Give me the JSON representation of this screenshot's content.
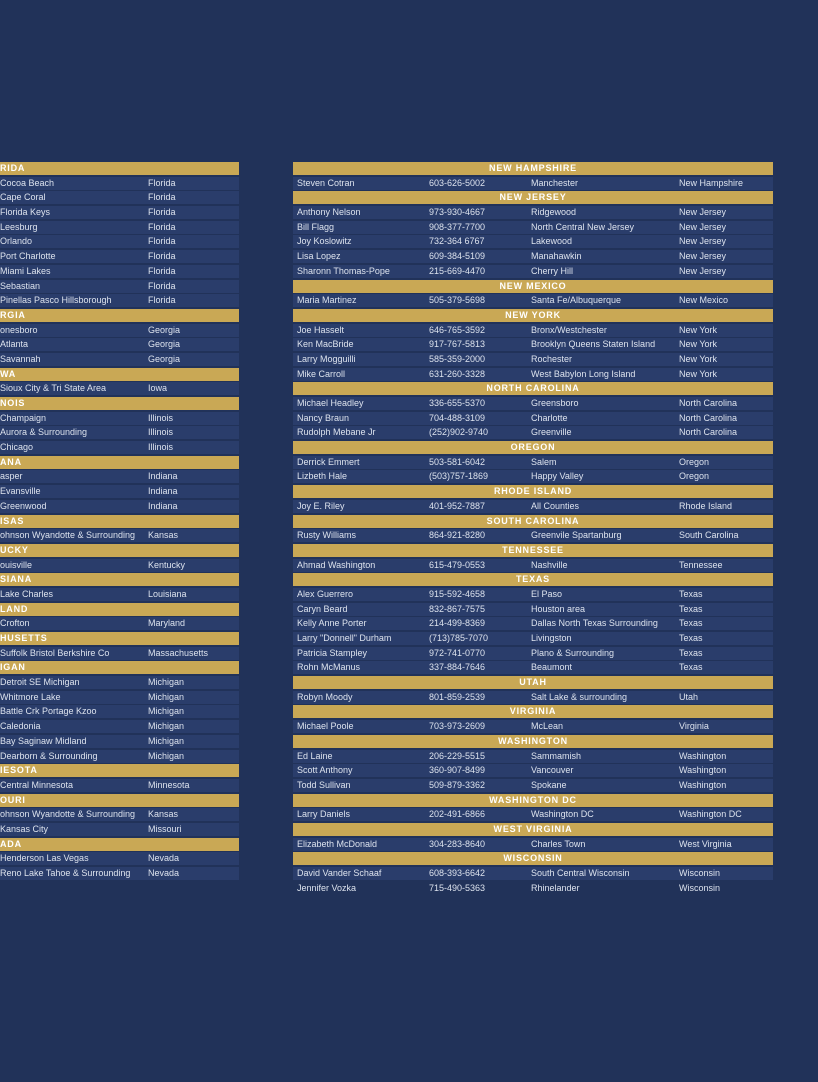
{
  "left_sections": [
    {
      "header": "RIDA",
      "rows": [
        [
          "Cocoa Beach",
          "Florida"
        ],
        [
          "Cape Coral",
          "Florida"
        ],
        [
          "Florida Keys",
          "Florida"
        ],
        [
          "Leesburg",
          "Florida"
        ],
        [
          "Orlando",
          "Florida"
        ],
        [
          "Port Charlotte",
          "Florida"
        ],
        [
          "Miami Lakes",
          "Florida"
        ],
        [
          "Sebastian",
          "Florida"
        ],
        [
          "Pinellas Pasco Hillsborough",
          "Florida"
        ]
      ]
    },
    {
      "header": "RGIA",
      "rows": [
        [
          "onesboro",
          "Georgia"
        ],
        [
          "Atlanta",
          "Georgia"
        ],
        [
          "Savannah",
          "Georgia"
        ]
      ]
    },
    {
      "header": "WA",
      "rows": [
        [
          "Sioux City & Tri State Area",
          "Iowa"
        ]
      ]
    },
    {
      "header": "NOIS",
      "rows": [
        [
          "Champaign",
          "Illinois"
        ],
        [
          "Aurora & Surrounding",
          "Illinois"
        ],
        [
          "Chicago",
          "Illinois"
        ]
      ]
    },
    {
      "header": "ANA",
      "rows": [
        [
          "asper",
          "Indiana"
        ],
        [
          "Evansville",
          "Indiana"
        ],
        [
          "Greenwood",
          "Indiana"
        ]
      ]
    },
    {
      "header": "ISAS",
      "rows": [
        [
          "ohnson Wyandotte & Surrounding",
          "Kansas"
        ]
      ]
    },
    {
      "header": "UCKY",
      "rows": [
        [
          "ouisville",
          "Kentucky"
        ]
      ]
    },
    {
      "header": "SIANA",
      "rows": [
        [
          "Lake Charles",
          "Louisiana"
        ]
      ]
    },
    {
      "header": "LAND",
      "rows": [
        [
          "Crofton",
          "Maryland"
        ]
      ]
    },
    {
      "header": "HUSETTS",
      "rows": [
        [
          "Suffolk Bristol Berkshire Co",
          "Massachusetts"
        ]
      ]
    },
    {
      "header": "IGAN",
      "rows": [
        [
          "Detroit SE Michigan",
          "Michigan"
        ],
        [
          "Whitmore Lake",
          "Michigan"
        ],
        [
          "Battle Crk Portage Kzoo",
          "Michigan"
        ],
        [
          "Caledonia",
          "Michigan"
        ],
        [
          "Bay Saginaw Midland",
          "Michigan"
        ],
        [
          "Dearborn & Surrounding",
          "Michigan"
        ]
      ]
    },
    {
      "header": "IESOTA",
      "rows": [
        [
          "Central  Minnesota",
          "Minnesota"
        ]
      ]
    },
    {
      "header": "OURI",
      "rows": [
        [
          "ohnson Wyandotte & Surrounding",
          "Kansas"
        ],
        [
          "Kansas City",
          "Missouri"
        ]
      ]
    },
    {
      "header": "ADA",
      "rows": [
        [
          "Henderson Las Vegas",
          "Nevada"
        ],
        [
          "Reno Lake Tahoe & Surrounding",
          "Nevada"
        ]
      ]
    }
  ],
  "right_sections": [
    {
      "header": "NEW HAMPSHIRE",
      "rows": [
        [
          "Steven Cotran",
          "603-626-5002",
          "Manchester",
          "New Hampshire"
        ]
      ]
    },
    {
      "header": "NEW JERSEY",
      "rows": [
        [
          "Anthony Nelson",
          "973-930-4667",
          "Ridgewood",
          "New Jersey"
        ],
        [
          "Bill Flagg",
          "908-377-7700",
          "North Central New Jersey",
          "New Jersey"
        ],
        [
          "Joy Koslowitz",
          "732-364 6767",
          "Lakewood",
          "New Jersey"
        ],
        [
          "Lisa Lopez",
          "609-384-5109",
          "Manahawkin",
          "New Jersey"
        ],
        [
          "Sharonn Thomas-Pope",
          "215-669-4470",
          "Cherry Hill",
          "New Jersey"
        ]
      ]
    },
    {
      "header": "NEW MEXICO",
      "rows": [
        [
          "Maria Martinez",
          "505-379-5698",
          "Santa Fe/Albuquerque",
          "New Mexico"
        ]
      ]
    },
    {
      "header": "NEW YORK",
      "rows": [
        [
          "Joe Hasselt",
          "646-765-3592",
          "Bronx/Westchester",
          "New York"
        ],
        [
          "Ken MacBride",
          "917-767-5813",
          "Brooklyn Queens Staten Island",
          "New York"
        ],
        [
          "Larry Mogguilli",
          "585-359-2000",
          "Rochester",
          "New York"
        ],
        [
          "Mike Carroll",
          "631-260-3328",
          "West Babylon Long Island",
          "New York"
        ]
      ]
    },
    {
      "header": "NORTH CAROLINA",
      "rows": [
        [
          "Michael Headley",
          "336-655-5370",
          "Greensboro",
          "North Carolina"
        ],
        [
          "Nancy Braun",
          "704-488-3109",
          "Charlotte",
          "North Carolina"
        ],
        [
          "Rudolph Mebane Jr",
          "(252)902-9740",
          "Greenville",
          "North Carolina"
        ]
      ]
    },
    {
      "header": "OREGON",
      "rows": [
        [
          "Derrick Emmert",
          "503-581-6042",
          "Salem",
          "Oregon"
        ],
        [
          "Lizbeth Hale",
          "(503)757-1869",
          "Happy Valley",
          "Oregon"
        ]
      ]
    },
    {
      "header": "RHODE ISLAND",
      "rows": [
        [
          "Joy E. Riley",
          "401-952-7887",
          "All Counties",
          "Rhode Island"
        ]
      ]
    },
    {
      "header": "SOUTH CAROLINA",
      "rows": [
        [
          "Rusty Williams",
          "864-921-8280",
          "Greenvile Spartanburg",
          "South Carolina"
        ]
      ]
    },
    {
      "header": "TENNESSEE",
      "rows": [
        [
          "Ahmad Washington",
          "615-479-0553",
          "Nashville",
          "Tennessee"
        ]
      ]
    },
    {
      "header": "TEXAS",
      "rows": [
        [
          "Alex Guerrero",
          "915-592-4658",
          "El Paso",
          "Texas"
        ],
        [
          "Caryn Beard",
          "832-867-7575",
          "Houston area",
          "Texas"
        ],
        [
          "Kelly Anne Porter",
          "214-499-8369",
          "Dallas North Texas Surrounding",
          "Texas"
        ],
        [
          "Larry \"Donnell\" Durham",
          "(713)785-7070",
          "Livingston",
          "Texas"
        ],
        [
          "Patricia Stampley",
          "972-741-0770",
          "Plano & Surrounding",
          "Texas"
        ],
        [
          "Rohn McManus",
          "337-884-7646",
          "Beaumont",
          "Texas"
        ]
      ]
    },
    {
      "header": "UTAH",
      "rows": [
        [
          "Robyn Moody",
          "801-859-2539",
          "Salt Lake & surrounding",
          "Utah"
        ]
      ]
    },
    {
      "header": "VIRGINIA",
      "rows": [
        [
          "Michael Poole",
          "703-973-2609",
          "McLean",
          "Virginia"
        ]
      ]
    },
    {
      "header": "WASHINGTON",
      "rows": [
        [
          "Ed Laine",
          "206-229-5515",
          "Sammamish",
          "Washington"
        ],
        [
          "Scott Anthony",
          "360-907-8499",
          "Vancouver",
          "Washington"
        ],
        [
          "Todd Sullivan",
          "509-879-3362",
          "Spokane",
          "Washington"
        ]
      ]
    },
    {
      "header": "WASHINGTON DC",
      "rows": [
        [
          "Larry Daniels",
          "202-491-6866",
          "Washington DC",
          "Washington DC"
        ]
      ]
    },
    {
      "header": "WEST VIRGINIA",
      "rows": [
        [
          "Elizabeth McDonald",
          "304-283-8640",
          "Charles Town",
          "West Virginia"
        ]
      ]
    },
    {
      "header": "WISCONSIN",
      "rows": [
        [
          "David Vander Schaaf",
          "608-393-6642",
          "South Central Wisconsin",
          "Wisconsin"
        ],
        [
          "Jennifer Vozka",
          "715-490-5363",
          "Rhinelander",
          "Wisconsin"
        ]
      ]
    }
  ],
  "colors": {
    "background": "#213259",
    "header_gold": "#c9a855",
    "row_band": "#2a3d6b",
    "text": "#dde3ee"
  }
}
